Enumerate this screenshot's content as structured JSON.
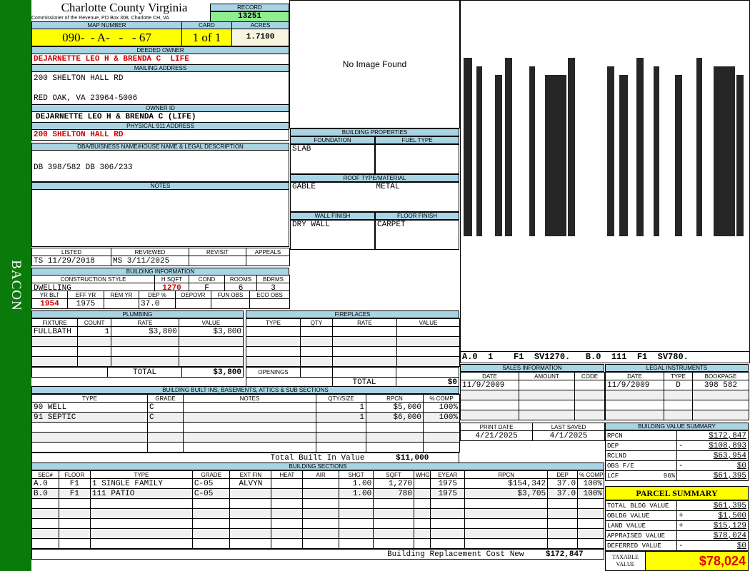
{
  "side_label": "BACON",
  "header": {
    "title": "Charlotte County Virginia",
    "subtitle": "Commissioner of the Revenue, PO Box 308, Charlotte CH, VA",
    "record_label": "RECORD",
    "record": "13251"
  },
  "map": {
    "map_label": "MAP NUMBER",
    "map_number": "090-  - A-   -   - 67",
    "card_label": "CARD",
    "card": "1 of 1",
    "acres_label": "ACRES",
    "acres": "1.7100"
  },
  "owner": {
    "deeded_label": "DEEDED OWNER",
    "deeded": "DEJARNETTE LEO H & BRENDA C  LIFE",
    "mailing_label": "MAILING ADDRESS",
    "mailing_line1": "200 SHELTON HALL RD",
    "mailing_line2": "RED OAK, VA 23964-5006",
    "owner_id_label": "OWNER ID",
    "owner_id": "DEJARNETTE LEO H & BRENDA C (LIFE)",
    "physical_label": "PHYSICAL 911 ADDRESS",
    "physical": "200 SHELTON HALL RD",
    "dba_label": "DBA/BUISNESS NAME/HOUSE NAME & LEGAL DESCRIPTION",
    "dba": "DB 398/582 DB 306/233",
    "notes_label": "NOTES",
    "notes": ""
  },
  "image": {
    "text": "No Image Found"
  },
  "review": {
    "headers": [
      "LISTED",
      "REVIEWED",
      "REVISIT",
      "APPEALS"
    ],
    "rows": [
      [
        "TS   11/29/2018",
        "MS    3/11/2025",
        "",
        ""
      ]
    ]
  },
  "building_info": {
    "title": "BUILDING INFORMATION",
    "top": {
      "headers": [
        "CONSTRUCTION STYLE",
        "H SQFT",
        "COND",
        "ROOMS",
        "BDRMS"
      ],
      "rows": [
        [
          "DWELLING",
          "1270",
          "F",
          "6",
          "3"
        ]
      ]
    },
    "bottom": {
      "headers": [
        "YR BLT",
        "EFF YR",
        "REM YR",
        "DEP %",
        "DEPOVR",
        "FUN OBS",
        "ECO OBS"
      ],
      "rows": [
        [
          "1954",
          "1975",
          "",
          "37.0",
          "",
          "",
          ""
        ]
      ]
    }
  },
  "building_properties": {
    "title": "BUILDING PROPERTIES",
    "foundation_label": "FOUNDATION",
    "foundation": "SLAB",
    "fuel_label": "FUEL TYPE",
    "fuel": "",
    "roof_label": "ROOF TYPE/MATERIAL",
    "roof_type": "GABLE",
    "roof_material": "METAL",
    "wall_label": "WALL FINISH",
    "wall": "DRY WALL",
    "floor_label": "FLOOR FINISH",
    "floor": "CARPET"
  },
  "plumbing": {
    "title": "PLUMBING",
    "headers": [
      "FIXTURE",
      "COUNT",
      "RATE",
      "VALUE"
    ],
    "rows": [
      [
        "FULLBATH",
        "1",
        "$3,800",
        "$3,800"
      ],
      [
        "",
        "",
        "",
        ""
      ],
      [
        "",
        "",
        "",
        ""
      ],
      [
        "",
        "",
        "",
        ""
      ]
    ],
    "total_label": "TOTAL",
    "total": "$3,800"
  },
  "fireplaces": {
    "title": "FIREPLACES",
    "headers": [
      "TYPE",
      "QTY",
      "RATE",
      "VALUE"
    ],
    "rows": [
      [
        "",
        "",
        "",
        ""
      ],
      [
        "",
        "",
        "",
        ""
      ],
      [
        "",
        "",
        "",
        ""
      ],
      [
        "",
        "",
        "",
        ""
      ]
    ],
    "openings_label": "OPENINGS",
    "total_label": "TOTAL",
    "total": "$0"
  },
  "built_ins": {
    "title": "BUILDING BUILT INS, BASEMENTS, ATTICS & SUB SECTIONS",
    "headers": [
      "TYPE",
      "GRADE",
      "NOTES",
      "QTY/SIZE",
      "RPCN",
      "% COMP"
    ],
    "rows": [
      [
        "90 WELL",
        "C",
        "",
        "1",
        "$5,000",
        "100%"
      ],
      [
        "91 SEPTIC",
        "C",
        "",
        "1",
        "$6,000",
        "100%"
      ],
      [
        "",
        "",
        "",
        "",
        "",
        ""
      ],
      [
        "",
        "",
        "",
        "",
        "",
        ""
      ],
      [
        "",
        "",
        "",
        "",
        "",
        ""
      ]
    ],
    "total_label": "Total Built In Value",
    "total": "$11,000"
  },
  "sketch": {
    "caption": "A.0  1    F1  SV1270.   B.0  111  F1  SV780."
  },
  "sales": {
    "title": "SALES INFORMATION",
    "headers": [
      "DATE",
      "AMOUNT",
      "CODE"
    ],
    "rows": [
      [
        "11/9/2009",
        "",
        ""
      ],
      [
        "",
        "",
        ""
      ],
      [
        "",
        "",
        ""
      ],
      [
        "",
        "",
        ""
      ]
    ]
  },
  "legal": {
    "title": "LEGAL INSTRUMENTS",
    "headers": [
      "DATE",
      "TYPE",
      "BOOKPAGE"
    ],
    "rows": [
      [
        "11/9/2009",
        "D",
        "398 582"
      ],
      [
        "",
        "",
        ""
      ],
      [
        "",
        "",
        ""
      ],
      [
        "",
        "",
        ""
      ]
    ]
  },
  "dates": {
    "headers": [
      "PRINT DATE",
      "LAST SAVED"
    ],
    "rows": [
      [
        "4/21/2025",
        "4/1/2025"
      ]
    ]
  },
  "value_summary": {
    "title": "BUILDING VALUE SUMMARY",
    "rows": [
      {
        "label": "RPCN",
        "pct": "",
        "sign": "",
        "value": "$172,847"
      },
      {
        "label": "DEP",
        "pct": "",
        "sign": "-",
        "value": "$108,893"
      },
      {
        "label": "RCLND",
        "pct": "",
        "sign": "",
        "value": "$63,954"
      },
      {
        "label": "OBS F/E",
        "pct": "",
        "sign": "-",
        "value": "$0"
      },
      {
        "label": "LCF",
        "pct": "96%",
        "sign": "",
        "value": "$61,395"
      }
    ]
  },
  "sections": {
    "title": "BUILDING SECTIONS",
    "headers": [
      "SEC#",
      "FLOOR",
      "TYPE",
      "GRADE",
      "EXT FIN",
      "HEAT",
      "AIR",
      "SHGT",
      "SQFT",
      "WHGT",
      "EYEAR",
      "RPCN",
      "DEP",
      "% COMP"
    ],
    "rows": [
      [
        "A.0",
        "F1",
        "1 SINGLE FAMILY",
        "C-05",
        "ALVYN",
        "",
        "",
        "1.00",
        "1,270",
        "",
        "1975",
        "$154,342",
        "37.0",
        "100%"
      ],
      [
        "B.0",
        "F1",
        "111 PATIO",
        "C-05",
        "",
        "",
        "",
        "1.00",
        "780",
        "",
        "1975",
        "$3,705",
        "37.0",
        "100%"
      ],
      [
        "",
        "",
        "",
        "",
        "",
        "",
        "",
        "",
        "",
        "",
        "",
        "",
        "",
        ""
      ],
      [
        "",
        "",
        "",
        "",
        "",
        "",
        "",
        "",
        "",
        "",
        "",
        "",
        "",
        ""
      ],
      [
        "",
        "",
        "",
        "",
        "",
        "",
        "",
        "",
        "",
        "",
        "",
        "",
        "",
        ""
      ],
      [
        "",
        "",
        "",
        "",
        "",
        "",
        "",
        "",
        "",
        "",
        "",
        "",
        "",
        ""
      ],
      [
        "",
        "",
        "",
        "",
        "",
        "",
        "",
        "",
        "",
        "",
        "",
        "",
        "",
        ""
      ]
    ],
    "total_label": "Building Replacement Cost New",
    "total": "$172,847"
  },
  "parcel": {
    "title": "PARCEL SUMMARY",
    "rows": [
      {
        "label": "TOTAL BLDG VALUE",
        "sign": "",
        "value": "$61,395"
      },
      {
        "label": "OBLDG VALUE",
        "sign": "+",
        "value": "$1,500"
      },
      {
        "label": "LAND VALUE",
        "sign": "+",
        "value": "$15,129"
      },
      {
        "label": "APPRAISED VALUE",
        "sign": "",
        "value": "$78,024"
      },
      {
        "label": "DEFERRED VALUE",
        "sign": "-",
        "value": "$0"
      }
    ],
    "taxable_label": "TAXABLE VALUE",
    "taxable": "$78,024"
  },
  "colors": {
    "sidebar": "#0a7a0a",
    "label_bg": "#a8d4e4",
    "highlight": "#ffff00",
    "record_bg": "#90ee90",
    "emphasis_red": "#d00000"
  }
}
